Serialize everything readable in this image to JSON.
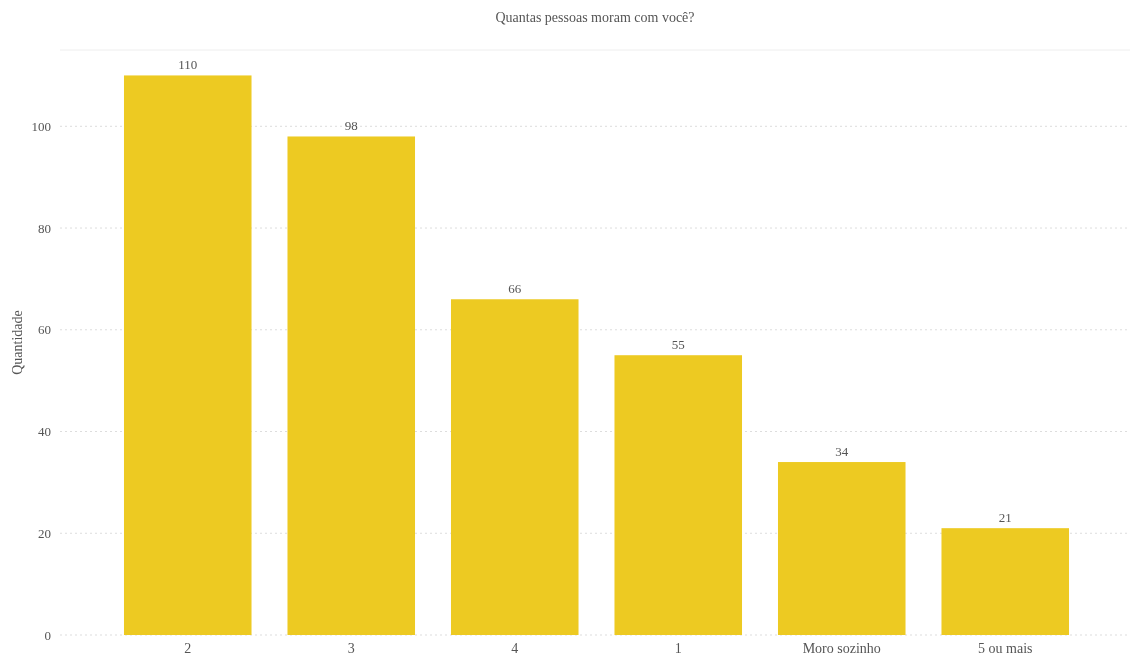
{
  "chart_data": {
    "type": "bar",
    "title": "Quantas pessoas moram com você?",
    "ylabel": "Quantidade",
    "categories": [
      "2",
      "3",
      "4",
      "1",
      "Moro sozinho",
      "5 ou mais"
    ],
    "values": [
      110,
      98,
      66,
      55,
      34,
      21
    ],
    "color": "#edca22",
    "ylim": [
      0,
      115
    ],
    "yticks": [
      0,
      20,
      40,
      60,
      80,
      100
    ],
    "grid": "y",
    "data_labels": true
  }
}
